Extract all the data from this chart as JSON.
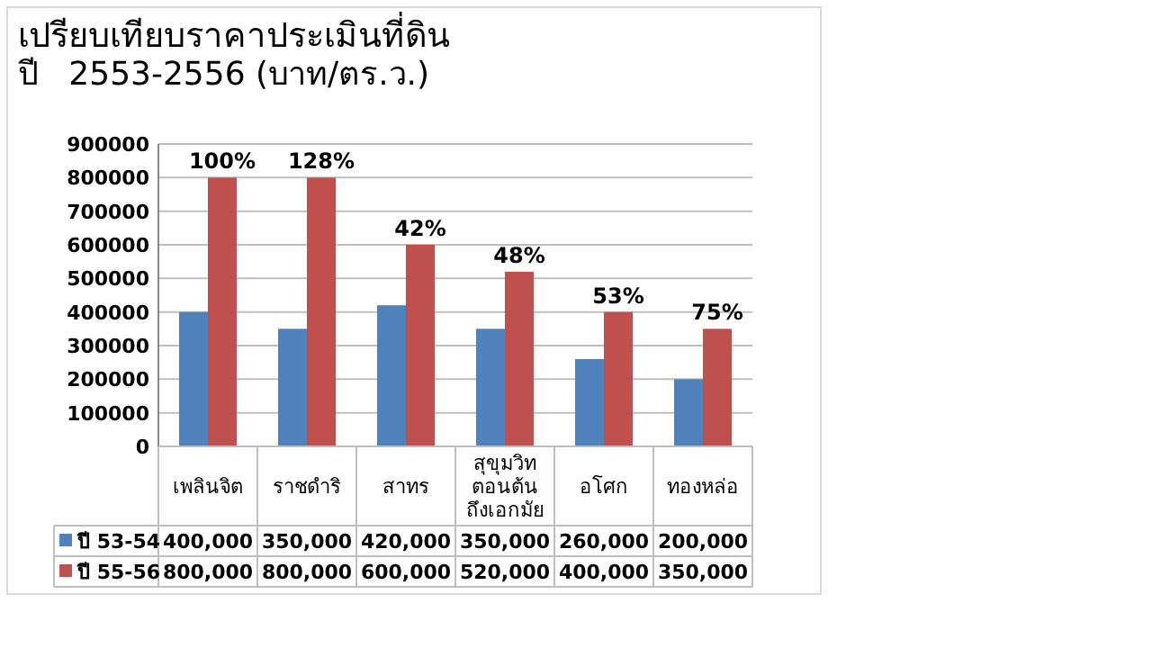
{
  "chart_data": {
    "type": "bar",
    "title": "เปรียบเทียบราคาประเมินที่ดิน",
    "subtitle": "ปี   2553-2556 (บาท/ตร.ว.)",
    "categories": [
      "เพลินจิต",
      "ราชดำริ",
      "สาทร",
      "สุขุมวิท ตอนต้น ถึงเอกมัย",
      "อโศก",
      "ทองหล่อ"
    ],
    "series": [
      {
        "name": "ปี 53-54",
        "color": "#4f81bd",
        "values": [
          400000,
          350000,
          420000,
          350000,
          260000,
          200000
        ],
        "value_labels": [
          "400,000",
          "350,000",
          "420,000",
          "350,000",
          "260,000",
          "200,000"
        ]
      },
      {
        "name": "ปี 55-56",
        "color": "#c0504d",
        "values": [
          800000,
          800000,
          600000,
          520000,
          400000,
          350000
        ],
        "value_labels": [
          "800,000",
          "800,000",
          "600,000",
          "520,000",
          "400,000",
          "350,000"
        ]
      }
    ],
    "ylim": [
      0,
      900000
    ],
    "yticks": [
      0,
      100000,
      200000,
      300000,
      400000,
      500000,
      600000,
      700000,
      800000,
      900000
    ],
    "grid": "y",
    "legend": "bottom",
    "annotations": [
      {
        "text": "100%",
        "x": "เพลินจิต",
        "y": 800000
      },
      {
        "text": "128%",
        "x": "ราชดำริ",
        "y": 800000
      },
      {
        "text": "42%",
        "x": "สาทร",
        "y": 600000
      },
      {
        "text": "48%",
        "x": "สุขุมวิท ตอนต้น ถึงเอกมัย",
        "y": 520000
      },
      {
        "text": "53%",
        "x": "อโศก",
        "y": 400000
      },
      {
        "text": "75%",
        "x": "ทองหล่อ",
        "y": 350000
      }
    ]
  }
}
